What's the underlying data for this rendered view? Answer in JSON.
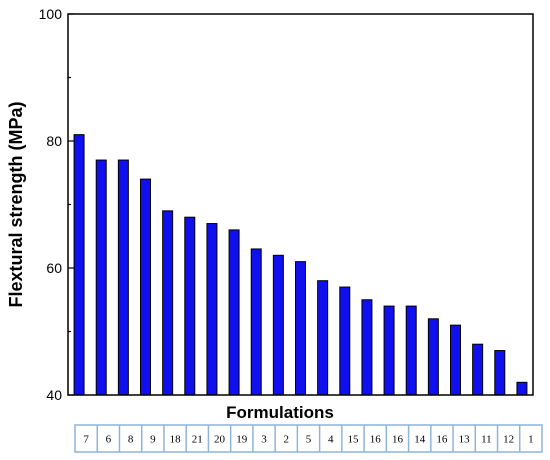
{
  "chart_data": {
    "type": "bar",
    "title": "",
    "xlabel": "Formulations",
    "ylabel": "Flextural strength (MPa)",
    "ylim": [
      40,
      100
    ],
    "yticks": [
      40,
      60,
      80,
      100
    ],
    "grid": false,
    "legend": "none",
    "bar_color": "#1010ee",
    "categories": [
      "7",
      "6",
      "8",
      "9",
      "18",
      "21",
      "20",
      "19",
      "3",
      "2",
      "5",
      "4",
      "15",
      "16",
      "16",
      "14",
      "16",
      "13",
      "11",
      "12",
      "1"
    ],
    "values": [
      81,
      77,
      77,
      74,
      69,
      68,
      67,
      66,
      63,
      62,
      61,
      58,
      57,
      55,
      54,
      54,
      52,
      51,
      48,
      47,
      42
    ]
  },
  "table_border_color": "#8fb4dc"
}
